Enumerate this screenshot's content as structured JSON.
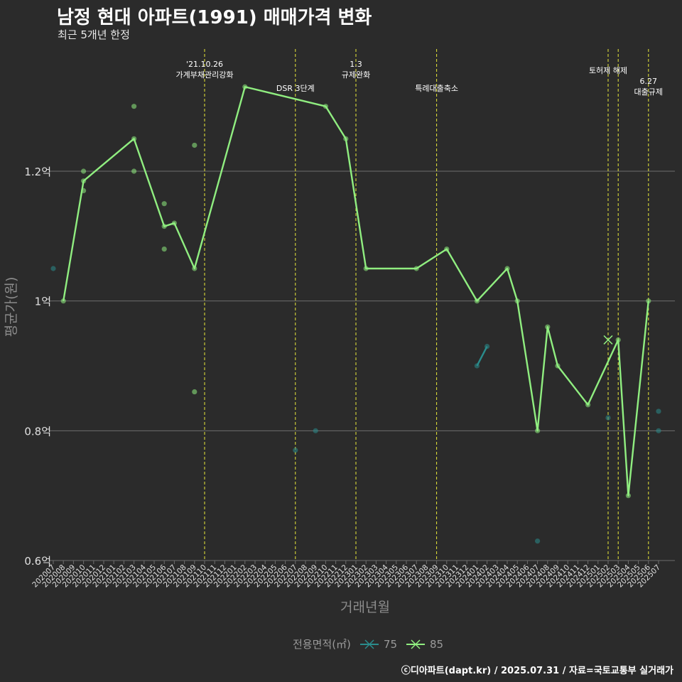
{
  "title": "남정 현대 아파트(1991) 매매가격 변화",
  "subtitle": "최근 5개년 한정",
  "caption": "ⓒ디아파트(dapt.kr) / 2025.07.31 / 자료=국토교통부 실거래가",
  "colors": {
    "background": "#2b2b2b",
    "grid": "#6e6e6e",
    "series_75": "#2a8c8c",
    "series_85": "#90ee80",
    "event_line": "#e8e83a",
    "axis_title": "#8c8c8c"
  },
  "chart_data": {
    "type": "line",
    "xlabel": "거래년월",
    "ylabel": "평균가(원)",
    "ylim": [
      0.6,
      1.4
    ],
    "y_unit": "억",
    "y_ticks": [
      "0.6억",
      "0.8억",
      "1억",
      "1.2억"
    ],
    "y_tick_values": [
      0.6,
      0.8,
      1.0,
      1.2
    ],
    "categories": [
      "202007",
      "202008",
      "202009",
      "202010",
      "202011",
      "202012",
      "202101",
      "202102",
      "202103",
      "202104",
      "202105",
      "202106",
      "202107",
      "202108",
      "202109",
      "202110",
      "202111",
      "202112",
      "202201",
      "202202",
      "202203",
      "202204",
      "202205",
      "202206",
      "202207",
      "202208",
      "202209",
      "202210",
      "202211",
      "202212",
      "202301",
      "202302",
      "202303",
      "202304",
      "202305",
      "202306",
      "202307",
      "202308",
      "202309",
      "202310",
      "202311",
      "202312",
      "202401",
      "202402",
      "202403",
      "202404",
      "202405",
      "202406",
      "202407",
      "202408",
      "202409",
      "202410",
      "202411",
      "202412",
      "202501",
      "202502",
      "202503",
      "202504",
      "202505",
      "202506",
      "202507"
    ],
    "legend_title": "전용면적(㎡)",
    "series": [
      {
        "name": "75",
        "color": "#2a8c8c",
        "points": [
          {
            "x": "202007",
            "y": 1.05
          },
          {
            "x": "202207",
            "y": 0.77
          },
          {
            "x": "202209",
            "y": 0.8
          },
          {
            "x": "202407",
            "y": 0.63
          },
          {
            "x": "202502",
            "y": 0.82
          },
          {
            "x": "202507",
            "y": 0.83
          },
          {
            "x": "202507",
            "y": 0.8
          }
        ],
        "line": [
          {
            "x": "202401",
            "y": 0.9
          },
          {
            "x": "202402",
            "y": 0.93
          }
        ]
      },
      {
        "name": "85",
        "color": "#90ee80",
        "points": [
          {
            "x": "202010",
            "y": 1.2
          },
          {
            "x": "202010",
            "y": 1.17
          },
          {
            "x": "202103",
            "y": 1.3
          },
          {
            "x": "202103",
            "y": 1.2
          },
          {
            "x": "202106",
            "y": 1.15
          },
          {
            "x": "202106",
            "y": 1.08
          },
          {
            "x": "202109",
            "y": 1.24
          },
          {
            "x": "202109",
            "y": 0.86
          }
        ],
        "line": [
          {
            "x": "202008",
            "y": 1.0
          },
          {
            "x": "202010",
            "y": 1.185
          },
          {
            "x": "202103",
            "y": 1.25
          },
          {
            "x": "202106",
            "y": 1.115
          },
          {
            "x": "202107",
            "y": 1.12
          },
          {
            "x": "202109",
            "y": 1.05
          },
          {
            "x": "202202",
            "y": 1.33
          },
          {
            "x": "202210",
            "y": 1.3
          },
          {
            "x": "202212",
            "y": 1.25
          },
          {
            "x": "202302",
            "y": 1.05
          },
          {
            "x": "202307",
            "y": 1.05
          },
          {
            "x": "202310",
            "y": 1.08
          },
          {
            "x": "202401",
            "y": 1.0
          },
          {
            "x": "202404",
            "y": 1.05
          },
          {
            "x": "202405",
            "y": 1.0
          },
          {
            "x": "202407",
            "y": 0.8
          },
          {
            "x": "202408",
            "y": 0.96
          },
          {
            "x": "202409",
            "y": 0.9
          },
          {
            "x": "202412",
            "y": 0.84
          },
          {
            "x": "202503",
            "y": 0.94
          },
          {
            "x": "202504",
            "y": 0.7
          },
          {
            "x": "202506",
            "y": 1.0
          }
        ],
        "markers_x": [
          {
            "x": "202502",
            "y": 0.94
          }
        ]
      }
    ],
    "annotations": [
      {
        "x": "202110",
        "label": "'21.10.26\n가계부채관리강화",
        "level": 0
      },
      {
        "x": "202207",
        "label": "DSR 3단계",
        "level": 1
      },
      {
        "x": "202301",
        "label": "1.3\n규제완화",
        "level": 0
      },
      {
        "x": "202309",
        "label": "특례대출축소",
        "level": 1
      },
      {
        "x": "202502",
        "label": "토허제 해제",
        "level": 0
      },
      {
        "x": "202503",
        "label": "",
        "level": 0
      },
      {
        "x": "202506",
        "label": "6.27\n대출규제",
        "level": 1
      }
    ]
  }
}
